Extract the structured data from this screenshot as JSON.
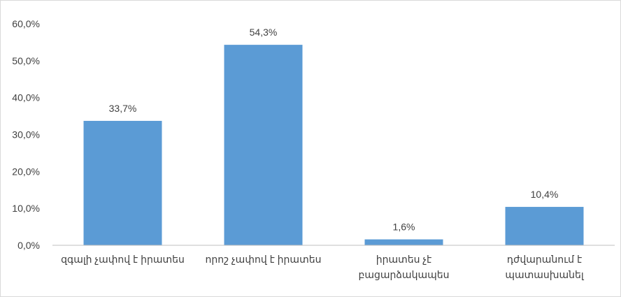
{
  "chart_data": {
    "type": "bar",
    "categories": [
      [
        "զգալի չափով է իրատես"
      ],
      [
        "որոշ չափով է իրատես"
      ],
      [
        "իրատես չէ",
        "բացարձակապես"
      ],
      [
        "դժվարանում է",
        "պատասխանել"
      ]
    ],
    "values": [
      33.7,
      54.3,
      1.6,
      10.4
    ],
    "value_labels": [
      "33,7%",
      "54,3%",
      "1,6%",
      "10,4%"
    ],
    "yticks": [
      0,
      10,
      20,
      30,
      40,
      50,
      60
    ],
    "ytick_labels": [
      "0,0%",
      "10,0%",
      "20,0%",
      "30,0%",
      "40,0%",
      "50,0%",
      "60,0%"
    ],
    "ylim": [
      0,
      60
    ],
    "grid": false,
    "legend": "none",
    "bar_color": "#5b9bd5",
    "axis_color": "#bfbfbf",
    "text_color": "#404040"
  }
}
